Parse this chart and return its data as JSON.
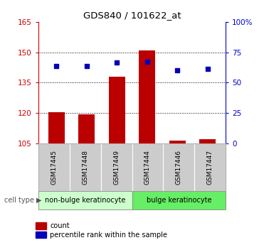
{
  "title": "GDS840 / 101622_at",
  "samples": [
    "GSM17445",
    "GSM17448",
    "GSM17449",
    "GSM17444",
    "GSM17446",
    "GSM17447"
  ],
  "red_values": [
    120.5,
    119.2,
    138.0,
    151.0,
    106.2,
    107.2
  ],
  "blue_percentile": [
    64.0,
    64.0,
    66.5,
    67.5,
    60.5,
    61.5
  ],
  "ylim_left": [
    105,
    165
  ],
  "ylim_right": [
    0,
    100
  ],
  "yticks_left": [
    105,
    120,
    135,
    150,
    165
  ],
  "yticks_right": [
    0,
    25,
    50,
    75,
    100
  ],
  "ytick_right_labels": [
    "0",
    "25",
    "50",
    "75",
    "100%"
  ],
  "bar_color": "#bb0000",
  "dot_color": "#0000bb",
  "bar_base": 105,
  "group1_label": "non-bulge keratinocyte",
  "group2_label": "bulge keratinocyte",
  "group1_color": "#ccffcc",
  "group2_color": "#66ee66",
  "cell_type_label": "cell type",
  "legend_red": "count",
  "legend_blue": "percentile rank within the sample",
  "sample_box_color": "#cccccc",
  "axis_color_left": "#cc0000",
  "axis_color_right": "#0000cc",
  "n_group1": 3,
  "n_group2": 3
}
